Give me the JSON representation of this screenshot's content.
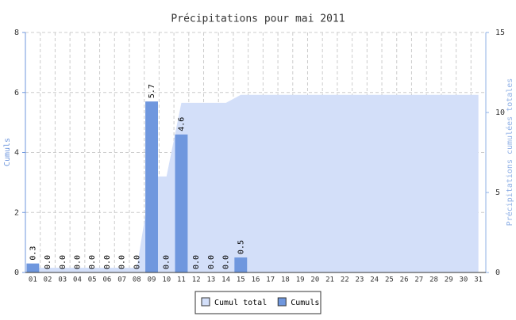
{
  "chart_data": {
    "type": "bar",
    "title": "Précipitations pour mai 2011",
    "y_label": "Cumuls",
    "y2_label": "Précipitations cumulées totales",
    "categories": [
      "01",
      "02",
      "03",
      "04",
      "05",
      "06",
      "07",
      "08",
      "09",
      "10",
      "11",
      "12",
      "13",
      "14",
      "15",
      "16",
      "17",
      "18",
      "19",
      "20",
      "21",
      "22",
      "23",
      "24",
      "25",
      "26",
      "27",
      "28",
      "29",
      "30",
      "31"
    ],
    "series": [
      {
        "name": "Cumul total",
        "type": "area",
        "axis": "y2",
        "color": "#d3dff9",
        "values": [
          0.3,
          0.3,
          0.3,
          0.3,
          0.3,
          0.3,
          0.3,
          0.3,
          6.0,
          6.0,
          10.6,
          10.6,
          10.6,
          10.6,
          11.1,
          11.1,
          11.1,
          11.1,
          11.1,
          11.1,
          11.1,
          11.1,
          11.1,
          11.1,
          11.1,
          11.1,
          11.1,
          11.1,
          11.1,
          11.1,
          11.1
        ]
      },
      {
        "name": "Cumuls",
        "type": "bar",
        "color": "#6f97de",
        "values": [
          0.3,
          0,
          0,
          0,
          0,
          0,
          0,
          0,
          5.7,
          0,
          4.6,
          0,
          0,
          0,
          0.5,
          null,
          null,
          null,
          null,
          null,
          null,
          null,
          null,
          null,
          null,
          null,
          null,
          null,
          null,
          null,
          null
        ],
        "value_labels": [
          "0.3",
          "0.0",
          "0.0",
          "0.0",
          "0.0",
          "0.0",
          "0.0",
          "0.0",
          "5.7",
          "0.0",
          "4.6",
          "0.0",
          "0.0",
          "0.0",
          "0.5",
          null,
          null,
          null,
          null,
          null,
          null,
          null,
          null,
          null,
          null,
          null,
          null,
          null,
          null,
          null,
          null
        ]
      }
    ],
    "ylim": [
      0,
      8
    ],
    "yticks": [
      0,
      2,
      4,
      6,
      8
    ],
    "y2lim": [
      0,
      15
    ],
    "y2ticks": [
      0,
      5,
      10,
      15
    ],
    "grid": true,
    "legend": "bottom"
  }
}
